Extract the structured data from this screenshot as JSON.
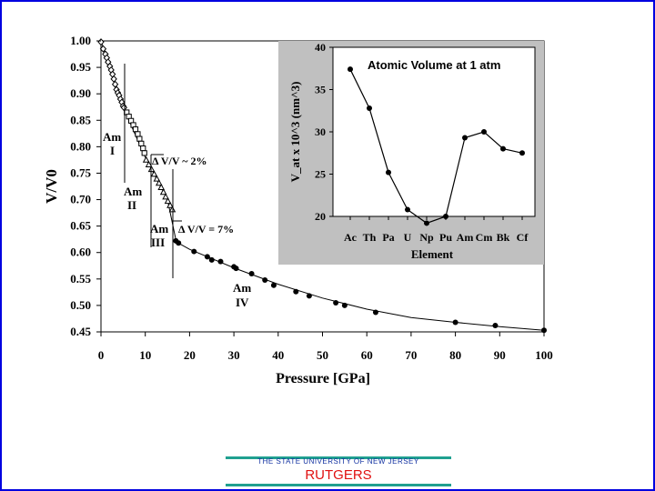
{
  "chart_data": [
    {
      "type": "scatter",
      "title": "",
      "xlabel": "Pressure [GPa]",
      "ylabel": "V/V0",
      "xlim": [
        0,
        100
      ],
      "ylim": [
        0.45,
        1.0
      ],
      "xticks": [
        "0",
        "10",
        "20",
        "30",
        "40",
        "50",
        "60",
        "70",
        "80",
        "90",
        "100"
      ],
      "yticks": [
        "1.00",
        "0.95",
        "0.90",
        "0.85",
        "0.80",
        "0.75",
        "0.70",
        "0.65",
        "0.60",
        "0.55",
        "0.50",
        "0.45"
      ],
      "grid": false,
      "series": [
        {
          "marker": "diamond",
          "points": [
            [
              0,
              0.998
            ],
            [
              0.5,
              0.985
            ],
            [
              1,
              0.975
            ],
            [
              1.3,
              0.968
            ],
            [
              1.6,
              0.96
            ],
            [
              2,
              0.952
            ],
            [
              2.3,
              0.945
            ],
            [
              2.6,
              0.937
            ],
            [
              2.9,
              0.928
            ],
            [
              3.2,
              0.918
            ],
            [
              3.5,
              0.908
            ],
            [
              3.8,
              0.902
            ],
            [
              4.1,
              0.897
            ],
            [
              4.4,
              0.89
            ],
            [
              4.7,
              0.884
            ],
            [
              5,
              0.877
            ],
            [
              5.2,
              0.874
            ]
          ]
        },
        {
          "marker": "square",
          "points": [
            [
              5.8,
              0.865
            ],
            [
              6.3,
              0.857
            ],
            [
              6.8,
              0.849
            ],
            [
              7.3,
              0.841
            ],
            [
              7.8,
              0.833
            ],
            [
              8.3,
              0.824
            ],
            [
              8.7,
              0.815
            ],
            [
              9.1,
              0.806
            ],
            [
              9.5,
              0.797
            ],
            [
              9.8,
              0.788
            ]
          ]
        },
        {
          "marker": "triangle",
          "points": [
            [
              10.2,
              0.775
            ],
            [
              10.8,
              0.766
            ],
            [
              11.4,
              0.757
            ],
            [
              12,
              0.748
            ],
            [
              12.6,
              0.739
            ],
            [
              13.1,
              0.731
            ],
            [
              13.6,
              0.723
            ],
            [
              14.1,
              0.714
            ],
            [
              14.6,
              0.705
            ],
            [
              15.1,
              0.697
            ],
            [
              15.6,
              0.689
            ],
            [
              16.1,
              0.681
            ]
          ]
        },
        {
          "marker": "circle",
          "points": [
            [
              16.9,
              0.622
            ],
            [
              17.5,
              0.618
            ],
            [
              21,
              0.602
            ],
            [
              24,
              0.592
            ],
            [
              25,
              0.586
            ],
            [
              27,
              0.583
            ],
            [
              30,
              0.573
            ],
            [
              30.5,
              0.57
            ],
            [
              34,
              0.56
            ],
            [
              37,
              0.548
            ],
            [
              39,
              0.538
            ],
            [
              44,
              0.526
            ],
            [
              47,
              0.518
            ],
            [
              53,
              0.505
            ],
            [
              55,
              0.5
            ],
            [
              62,
              0.487
            ],
            [
              80,
              0.468
            ],
            [
              89,
              0.462
            ],
            [
              100,
              0.453
            ]
          ]
        }
      ],
      "fit_curve": [
        [
          0,
          1.0
        ],
        [
          5,
          0.875
        ],
        [
          10,
          0.78
        ],
        [
          15,
          0.7
        ],
        [
          17,
          0.62
        ],
        [
          20,
          0.606
        ],
        [
          30,
          0.571
        ],
        [
          40,
          0.54
        ],
        [
          50,
          0.514
        ],
        [
          60,
          0.493
        ],
        [
          70,
          0.477
        ],
        [
          80,
          0.468
        ],
        [
          90,
          0.46
        ],
        [
          100,
          0.453
        ]
      ],
      "annotations": [
        {
          "label": "Am",
          "sub": "I"
        },
        {
          "label": "Am",
          "sub": "II"
        },
        {
          "label": "Am",
          "sub": "III"
        },
        {
          "label": "Am",
          "sub": "IV"
        },
        {
          "label": "Δ V/V ~ 2%"
        },
        {
          "label": "Δ V/V = 7%"
        }
      ]
    },
    {
      "type": "line",
      "title": "Atomic Volume at 1 atm",
      "xlabel": "Element",
      "ylabel": "V_at x 10^3 (nm^3)",
      "categories": [
        "Ac",
        "Th",
        "Pa",
        "U",
        "Np",
        "Pu",
        "Am",
        "Cm",
        "Bk",
        "Cf"
      ],
      "values": [
        37.4,
        32.8,
        25.2,
        20.8,
        19.2,
        20.0,
        29.3,
        30.0,
        28.0,
        27.5
      ],
      "ylim": [
        20,
        40
      ],
      "yticks": [
        "20",
        "25",
        "30",
        "35",
        "40"
      ],
      "grid": false,
      "placement": "top-right"
    }
  ],
  "footer": {
    "tagline": "THE STATE UNIVERSITY OF NEW JERSEY",
    "name": "RUTGERS"
  }
}
